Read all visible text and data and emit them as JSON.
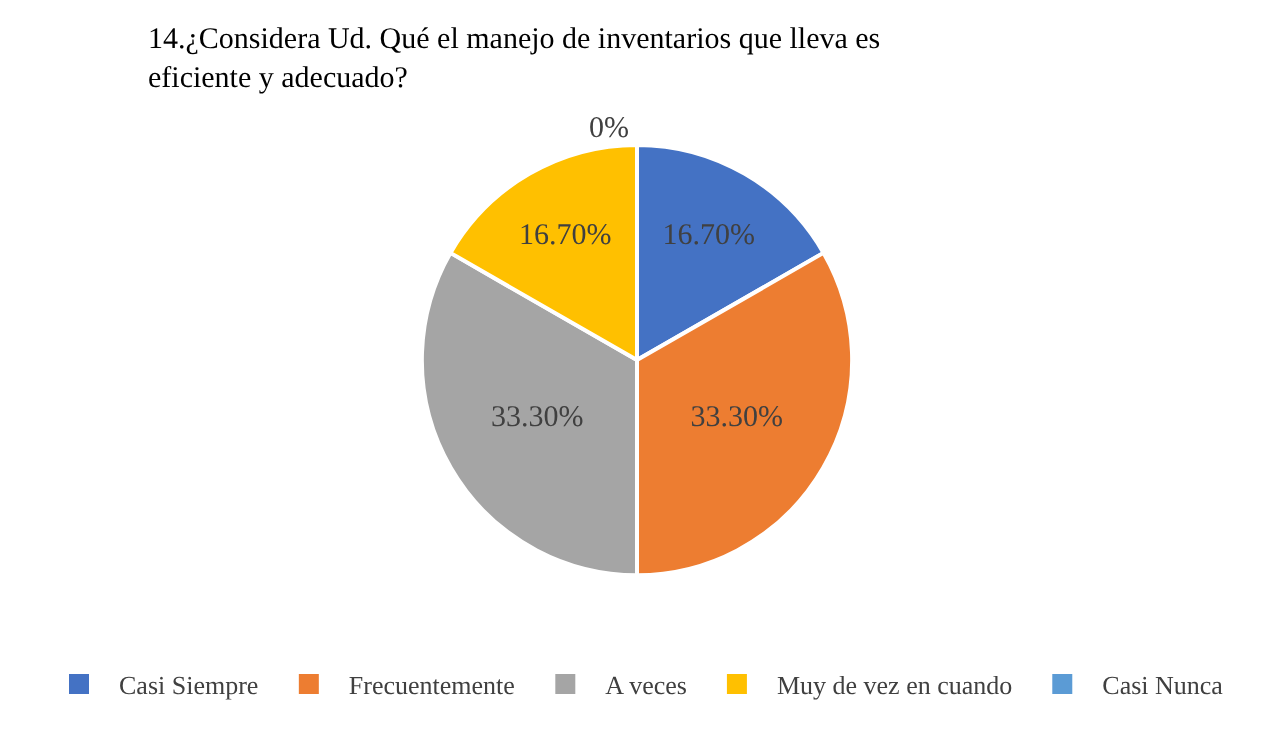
{
  "chart_data": {
    "type": "pie",
    "title": "14.¿Considera Ud. Qué el manejo de inventarios que lleva es eficiente y adecuado?",
    "categories": [
      "Casi Siempre",
      "Frecuentemente",
      "A veces",
      "Muy de vez en cuando",
      "Casi Nunca"
    ],
    "values": [
      16.7,
      33.3,
      33.3,
      16.7,
      0
    ],
    "value_labels": [
      "16.70%",
      "33.30%",
      "33.30%",
      "16.70%",
      "0%"
    ],
    "colors": [
      "#4472c4",
      "#ed7d31",
      "#a5a5a5",
      "#ffc000",
      "#5b9bd5"
    ],
    "legend": "bottom"
  }
}
